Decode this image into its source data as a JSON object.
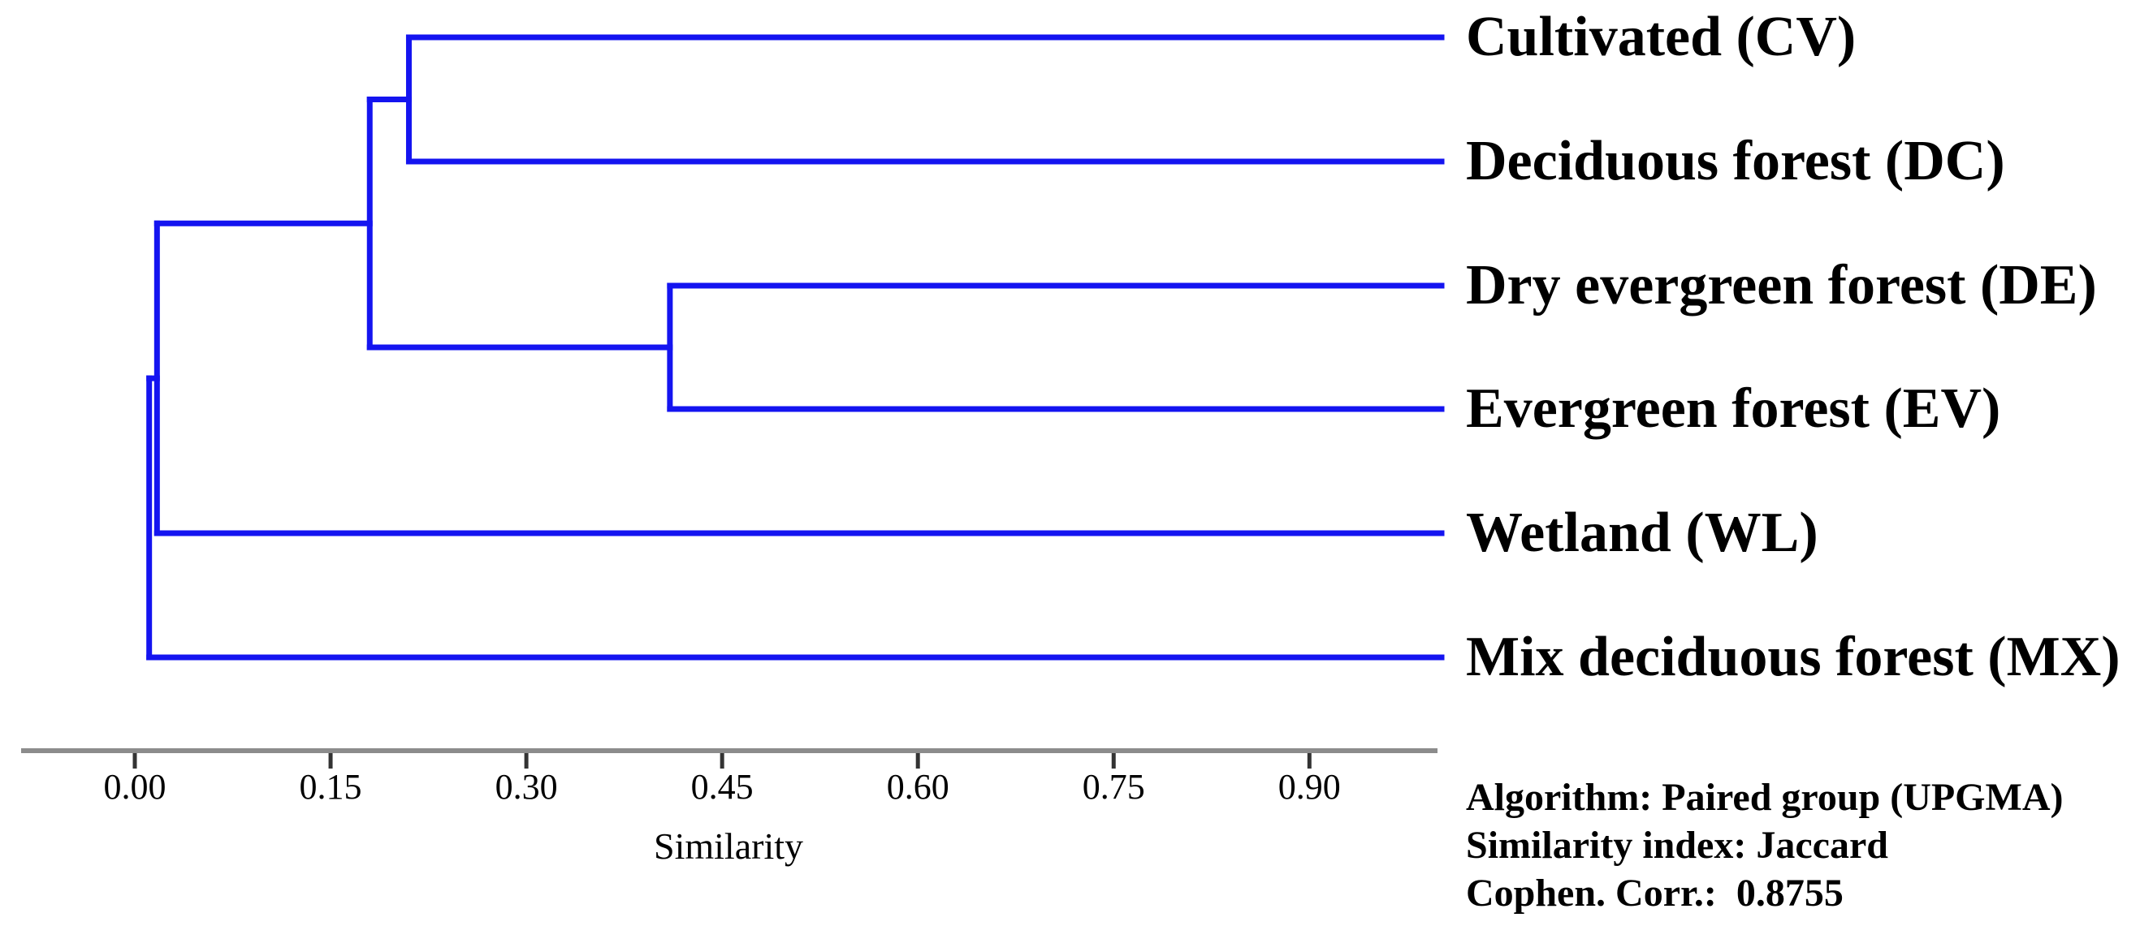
{
  "colors": {
    "line": "#1414f0",
    "axis": "#8c8c8c",
    "tick": "#333333",
    "text": "#000000",
    "background": "#ffffff"
  },
  "chart_data": {
    "type": "dendrogram",
    "orientation": "horizontal-leaves-right",
    "xlabel": "Similarity",
    "axis": {
      "tick_labels": [
        "0.00",
        "0.15",
        "0.30",
        "0.45",
        "0.60",
        "0.75",
        "0.90"
      ]
    },
    "leaves": [
      {
        "code": "CV",
        "label": "Cultivated (CV)"
      },
      {
        "code": "DC",
        "label": "Deciduous forest (DC)"
      },
      {
        "code": "DE",
        "label": "Dry evergreen forest (DE)"
      },
      {
        "code": "EV",
        "label": "Evergreen forest (EV)"
      },
      {
        "code": "WL",
        "label": "Wetland (WL)"
      },
      {
        "code": "MX",
        "label": "Mix deciduous forest (MX)"
      }
    ],
    "tree": {
      "similarity": 0.011,
      "children": [
        {
          "similarity": 0.017,
          "children": [
            {
              "similarity": 0.18,
              "children": [
                {
                  "similarity": 0.21,
                  "children": [
                    {
                      "leaf": "CV"
                    },
                    {
                      "leaf": "DC"
                    }
                  ]
                },
                {
                  "similarity": 0.41,
                  "children": [
                    {
                      "leaf": "DE"
                    },
                    {
                      "leaf": "EV"
                    }
                  ]
                }
              ]
            },
            {
              "leaf": "WL"
            }
          ]
        },
        {
          "leaf": "MX"
        }
      ]
    }
  },
  "info_panel": {
    "algorithm": "Algorithm: Paired group (UPGMA)",
    "similarity_index": "Similarity index: Jaccard",
    "cophenetic": "Cophen. Corr.:  0.8755"
  }
}
